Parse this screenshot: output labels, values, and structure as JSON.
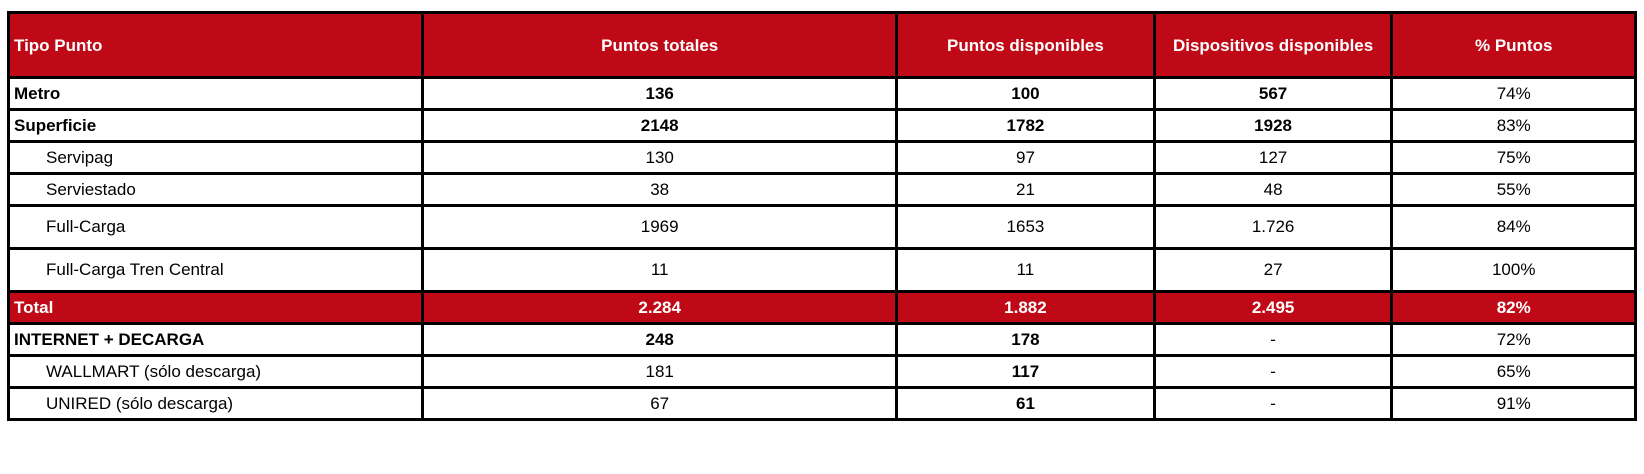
{
  "colors": {
    "header_bg": "#c00916",
    "header_text": "#ffffff",
    "border": "#000000"
  },
  "headers": [
    "Tipo Punto",
    "Puntos totales",
    "Puntos disponibles",
    "Dispositivos disponibles",
    "% Puntos"
  ],
  "rows": [
    {
      "tipo": "Metro",
      "totales": "136",
      "disponibles": "100",
      "dispositivos": "567",
      "pct": "74%"
    },
    {
      "tipo": "Superficie",
      "totales": "2148",
      "disponibles": "1782",
      "dispositivos": "1928",
      "pct": "83%"
    },
    {
      "tipo": "Servipag",
      "totales": "130",
      "disponibles": "97",
      "dispositivos": "127",
      "pct": "75%"
    },
    {
      "tipo": "Serviestado",
      "totales": "38",
      "disponibles": "21",
      "dispositivos": "48",
      "pct": "55%"
    },
    {
      "tipo": "Full-Carga",
      "totales": "1969",
      "disponibles": "1653",
      "dispositivos": "1.726",
      "pct": "84%"
    },
    {
      "tipo": "Full-Carga Tren Central",
      "totales": "11",
      "disponibles": "11",
      "dispositivos": "27",
      "pct": "100%"
    },
    {
      "tipo": "Total",
      "totales": "2.284",
      "disponibles": "1.882",
      "dispositivos": "2.495",
      "pct": "82%"
    },
    {
      "tipo": "INTERNET + DECARGA",
      "totales": "248",
      "disponibles": "178",
      "dispositivos": "-",
      "pct": "72%"
    },
    {
      "tipo": "WALLMART (sólo descarga)",
      "totales": "181",
      "disponibles": "117",
      "dispositivos": "-",
      "pct": "65%"
    },
    {
      "tipo": "UNIRED (sólo descarga)",
      "totales": "67",
      "disponibles": "61",
      "dispositivos": "-",
      "pct": "91%"
    }
  ]
}
